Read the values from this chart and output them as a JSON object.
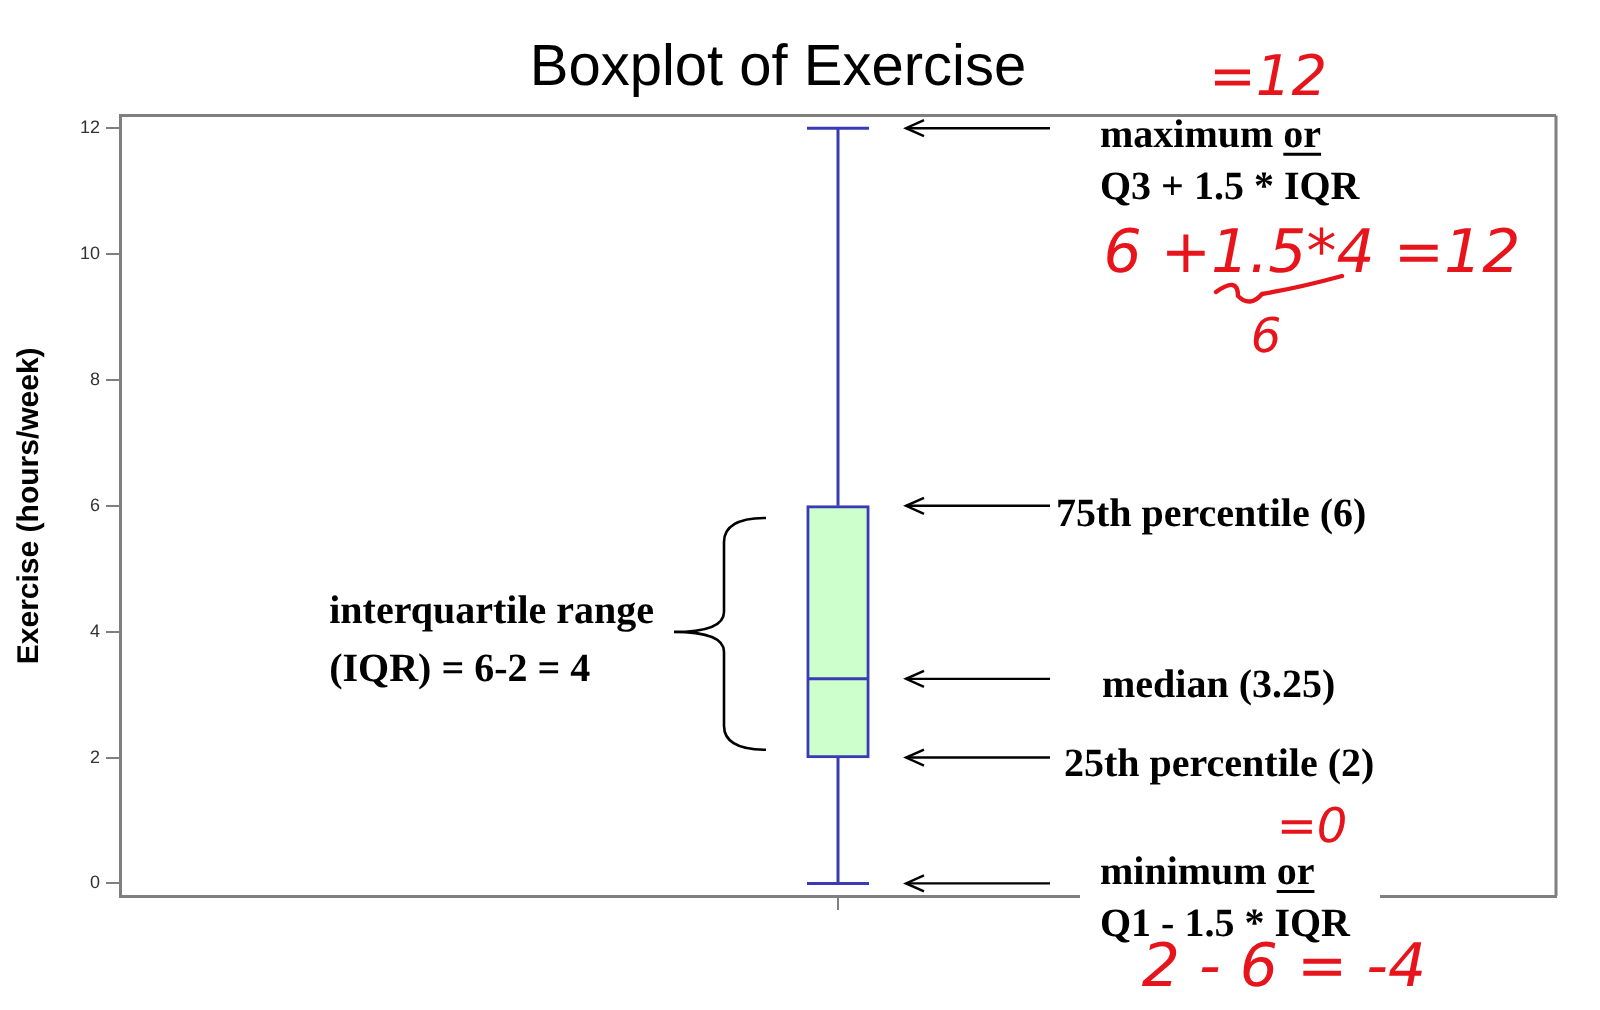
{
  "chart_data": {
    "type": "box",
    "title": "Boxplot of Exercise",
    "ylabel": "Exercise (hours/week)",
    "categories": [
      null
    ],
    "boxes": [
      {
        "low": 0,
        "q1": 2,
        "median": 3.25,
        "q3": 6,
        "high": 12
      }
    ],
    "color": "#3a3ab4",
    "ylim": [
      -0.2,
      12.2
    ],
    "yticks": [
      0,
      2,
      4,
      6,
      8,
      10,
      12
    ],
    "annotations": [
      "maximum or\nQ3 + 1.5 * IQR",
      "75th percentile (6)",
      "median (3.25)",
      "25th percentile (2)",
      "minimum or\nQ1 - 1.5 * IQR",
      "interquartile range\n(IQR) = 6-2 = 4",
      "=12",
      "6 +1.5*4 =12",
      "6",
      "=0",
      "2 - 6 = -4"
    ]
  }
}
